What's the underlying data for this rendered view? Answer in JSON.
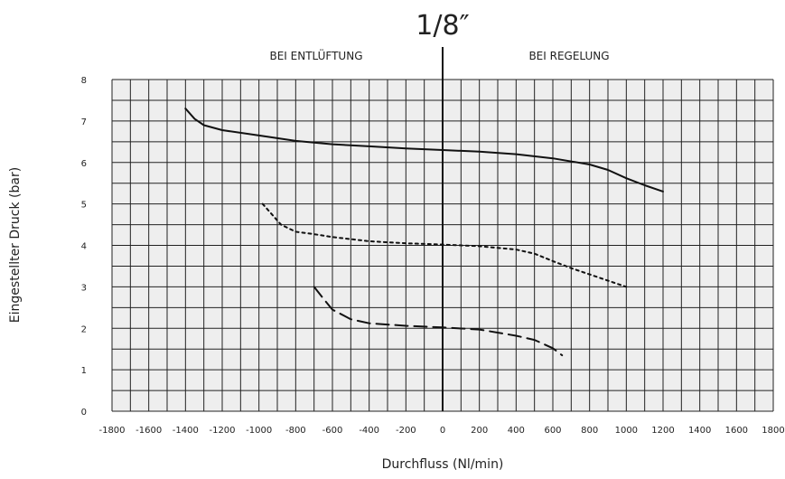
{
  "chart_data": {
    "type": "line",
    "title": "1/8″",
    "xlabel": "Durchfluss (Nl/min)",
    "ylabel": "Eingestellter Druck (bar)",
    "xlim": [
      -1800,
      1800
    ],
    "ylim": [
      0,
      8
    ],
    "x_ticks": [
      -1800,
      -1600,
      -1400,
      -1200,
      -1000,
      -800,
      -600,
      -400,
      -200,
      0,
      200,
      400,
      600,
      800,
      1000,
      1200,
      1400,
      1600,
      1800
    ],
    "y_ticks": [
      0,
      1,
      2,
      3,
      4,
      5,
      6,
      7,
      8
    ],
    "grid": true,
    "regions": {
      "left": "BEI  ENTLÜFTUNG",
      "right": "BEI REGELUNG"
    },
    "series": [
      {
        "style": "solid",
        "x": [
          -1400,
          -1350,
          -1300,
          -1200,
          -1000,
          -800,
          -600,
          -400,
          -200,
          0,
          200,
          400,
          600,
          800,
          900,
          1000,
          1100,
          1200
        ],
        "y": [
          7.3,
          7.05,
          6.9,
          6.78,
          6.65,
          6.52,
          6.44,
          6.39,
          6.34,
          6.3,
          6.26,
          6.2,
          6.1,
          5.95,
          5.82,
          5.62,
          5.45,
          5.3
        ]
      },
      {
        "style": "dotted",
        "x": [
          -980,
          -930,
          -880,
          -800,
          -700,
          -600,
          -400,
          -200,
          0,
          200,
          400,
          500,
          600,
          700,
          800,
          900,
          1000
        ],
        "y": [
          5.0,
          4.75,
          4.5,
          4.33,
          4.27,
          4.2,
          4.1,
          4.05,
          4.02,
          3.98,
          3.9,
          3.8,
          3.62,
          3.45,
          3.3,
          3.15,
          3.0
        ]
      },
      {
        "style": "dashed",
        "x": [
          -700,
          -650,
          -600,
          -500,
          -400,
          -200,
          0,
          200,
          400,
          500,
          600,
          650
        ],
        "y": [
          3.0,
          2.72,
          2.45,
          2.22,
          2.12,
          2.06,
          2.02,
          1.97,
          1.82,
          1.72,
          1.52,
          1.35
        ]
      }
    ]
  }
}
